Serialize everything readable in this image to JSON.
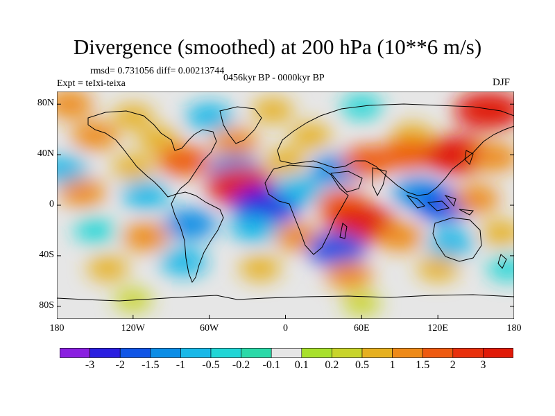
{
  "title": "Divergence (smoothed) at 200 hPa (10**6 m/s)",
  "stats_line": "rmsd= 0.731056 diff= 0.00213744",
  "experiment": "Expt = teIxi-teixa",
  "period": "0456kyr BP - 0000kyr BP",
  "season": "DJF",
  "axes": {
    "y_ticks": [
      "80N",
      "40N",
      "0",
      "40S",
      "80S"
    ],
    "x_ticks": [
      "180",
      "120W",
      "60W",
      "0",
      "60E",
      "120E",
      "180"
    ]
  },
  "colorbar": {
    "labels": [
      "-3",
      "-2",
      "-1.5",
      "-1",
      "-0.5",
      "-0.2",
      "-0.1",
      "0.1",
      "0.2",
      "0.5",
      "1",
      "1.5",
      "2",
      "3"
    ],
    "colors": [
      "#8a1fe0",
      "#2a1ee0",
      "#1055e6",
      "#0b8de6",
      "#18b8e8",
      "#21d6d6",
      "#2ad9a8",
      "#e6e6e6",
      "#a8e02c",
      "#c8d42a",
      "#e6b020",
      "#ee8a18",
      "#ee5a10",
      "#e8300c",
      "#e01a08"
    ]
  },
  "anomalies": [
    {
      "lon": -170,
      "lat": 80,
      "value": 1.0
    },
    {
      "lon": -120,
      "lat": 70,
      "value": 0.5
    },
    {
      "lon": -60,
      "lat": 70,
      "value": -1.0
    },
    {
      "lon": -10,
      "lat": 75,
      "value": 0.5
    },
    {
      "lon": 60,
      "lat": 78,
      "value": -0.5
    },
    {
      "lon": 160,
      "lat": 75,
      "value": 3.0
    },
    {
      "lon": -150,
      "lat": 55,
      "value": 1.0
    },
    {
      "lon": -100,
      "lat": 52,
      "value": 0.5
    },
    {
      "lon": -40,
      "lat": 50,
      "value": 1.0
    },
    {
      "lon": 20,
      "lat": 55,
      "value": 0.5
    },
    {
      "lon": 100,
      "lat": 55,
      "value": 0.5
    },
    {
      "lon": -175,
      "lat": 28,
      "value": -1.0
    },
    {
      "lon": -120,
      "lat": 30,
      "value": 0.5
    },
    {
      "lon": -80,
      "lat": 35,
      "value": 1.5
    },
    {
      "lon": -40,
      "lat": 28,
      "value": -1.5
    },
    {
      "lon": 0,
      "lat": 35,
      "value": 0.5
    },
    {
      "lon": 40,
      "lat": 28,
      "value": -1.5
    },
    {
      "lon": 65,
      "lat": 35,
      "value": 1.5
    },
    {
      "lon": 95,
      "lat": 40,
      "value": 1.5
    },
    {
      "lon": 135,
      "lat": 40,
      "value": 3.0
    },
    {
      "lon": 165,
      "lat": 38,
      "value": 1.0
    },
    {
      "lon": -160,
      "lat": 10,
      "value": 1.0
    },
    {
      "lon": -110,
      "lat": 8,
      "value": -1.0
    },
    {
      "lon": -35,
      "lat": 15,
      "value": 3.0
    },
    {
      "lon": -15,
      "lat": 0,
      "value": -3.0
    },
    {
      "lon": 10,
      "lat": 12,
      "value": -1.0
    },
    {
      "lon": 45,
      "lat": 0,
      "value": 1.5
    },
    {
      "lon": 60,
      "lat": -15,
      "value": 3.0
    },
    {
      "lon": 105,
      "lat": 10,
      "value": -1.5
    },
    {
      "lon": 125,
      "lat": 0,
      "value": -2.0
    },
    {
      "lon": 150,
      "lat": 5,
      "value": 1.0
    },
    {
      "lon": -150,
      "lat": -20,
      "value": -0.5
    },
    {
      "lon": -110,
      "lat": -25,
      "value": 1.0
    },
    {
      "lon": -75,
      "lat": -15,
      "value": -1.5
    },
    {
      "lon": -25,
      "lat": -18,
      "value": -1.0
    },
    {
      "lon": 10,
      "lat": -25,
      "value": 1.0
    },
    {
      "lon": 40,
      "lat": -35,
      "value": -2.0
    },
    {
      "lon": 90,
      "lat": -25,
      "value": 1.0
    },
    {
      "lon": 130,
      "lat": -30,
      "value": -1.0
    },
    {
      "lon": 170,
      "lat": -22,
      "value": 0.5
    },
    {
      "lon": -140,
      "lat": -50,
      "value": 0.5
    },
    {
      "lon": -80,
      "lat": -45,
      "value": -1.0
    },
    {
      "lon": -20,
      "lat": -50,
      "value": 0.5
    },
    {
      "lon": 50,
      "lat": -55,
      "value": 1.0
    },
    {
      "lon": 120,
      "lat": -50,
      "value": 0.5
    },
    {
      "lon": 175,
      "lat": -50,
      "value": -0.5
    },
    {
      "lon": -120,
      "lat": -75,
      "value": 0.2
    },
    {
      "lon": 60,
      "lat": -78,
      "value": 0.2
    }
  ]
}
